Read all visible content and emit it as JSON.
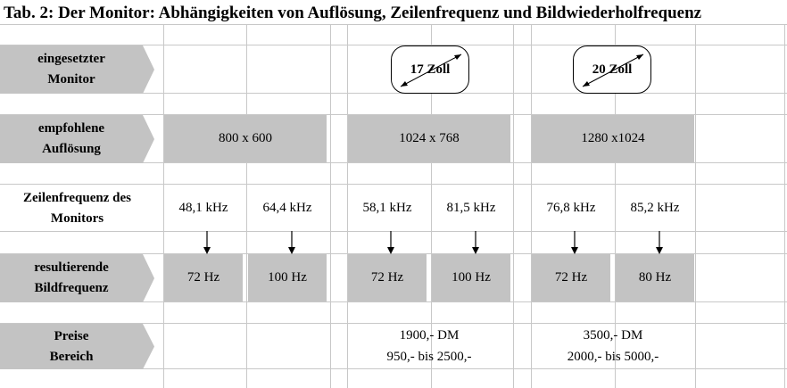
{
  "title": "Tab. 2: Der Monitor: Abhängigkeiten von Auflösung, Zeilenfrequenz und Bildwiederholfrequenz",
  "rows": {
    "monitor": {
      "label_line1": "eingesetzter",
      "label_line2": "Monitor"
    },
    "aufloesung": {
      "label_line1": "empfohlene",
      "label_line2": "Auflösung"
    },
    "zeilenfrequenz": {
      "label_line1": "Zeilenfrequenz des",
      "label_line2": "Monitors"
    },
    "bildfrequenz": {
      "label_line1": "resultierende",
      "label_line2": "Bildfrequenz"
    },
    "preise": {
      "label_line1": "Preise",
      "label_line2": "Bereich"
    }
  },
  "monitors": [
    {
      "size": "17 Zoll"
    },
    {
      "size": "20 Zoll"
    }
  ],
  "resolutions": [
    "800 x 600",
    "1024 x 768",
    "1280 x1024"
  ],
  "line_frequencies": [
    "48,1 kHz",
    "64,4 kHz",
    "58,1 kHz",
    "81,5 kHz",
    "76,8 kHz",
    "85,2 kHz"
  ],
  "refresh_rates": [
    "72 Hz",
    "100 Hz",
    "72 Hz",
    "100 Hz",
    "72 Hz",
    "80 Hz"
  ],
  "prices": [
    {
      "price": "1900,- DM",
      "range": "950,- bis 2500,-"
    },
    {
      "price": "3500,- DM",
      "range": "2000,- bis 5000,-"
    }
  ]
}
